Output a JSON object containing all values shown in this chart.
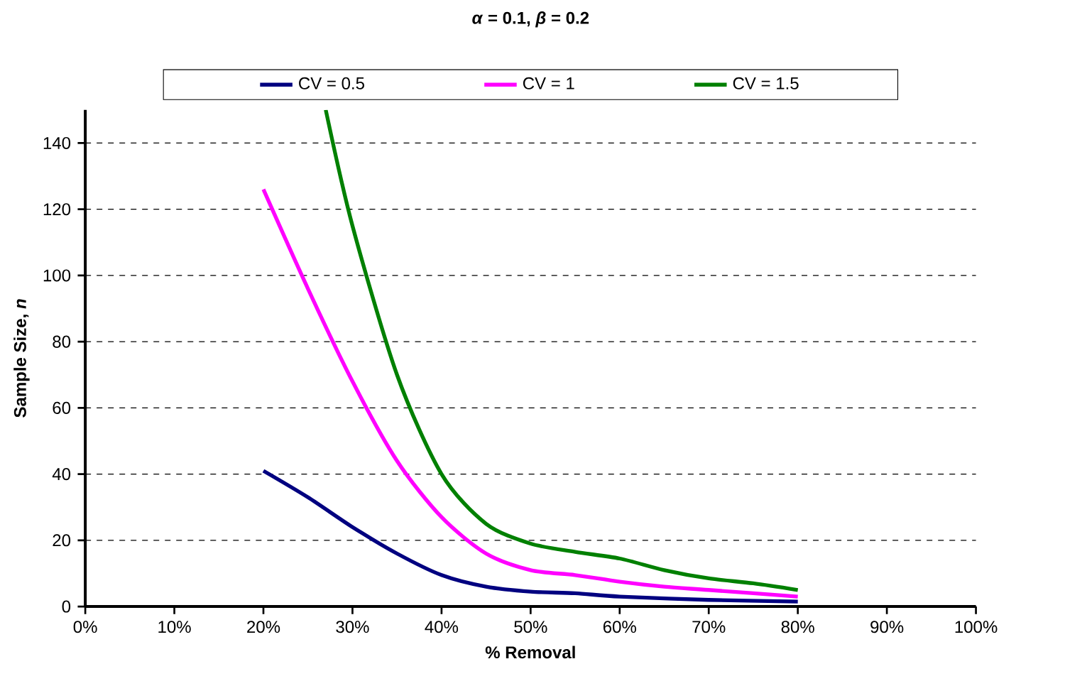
{
  "chart_data": {
    "type": "line",
    "title": "*α* = 0.1, *β* = 0.2",
    "xlabel": "% Removal",
    "ylabel": "Sample Size, *n*",
    "xlim": [
      0,
      100
    ],
    "xticks": [
      {
        "value": 0,
        "label": "0%"
      },
      {
        "value": 10,
        "label": "10%"
      },
      {
        "value": 20,
        "label": "20%"
      },
      {
        "value": 30,
        "label": "30%"
      },
      {
        "value": 40,
        "label": "40%"
      },
      {
        "value": 50,
        "label": "50%"
      },
      {
        "value": 60,
        "label": "60%"
      },
      {
        "value": 70,
        "label": "70%"
      },
      {
        "value": 80,
        "label": "80%"
      },
      {
        "value": 90,
        "label": "90%"
      },
      {
        "value": 100,
        "label": "100%"
      }
    ],
    "ylim": [
      0,
      150
    ],
    "yticks": [
      0,
      20,
      40,
      60,
      80,
      100,
      120,
      140
    ],
    "grid": "y",
    "legend": "top",
    "marker": "none",
    "line_style": "solid",
    "series": [
      {
        "name": "CV = 0.5",
        "color": "#000080",
        "x": [
          20,
          25,
          30,
          35,
          40,
          45,
          50,
          55,
          60,
          70,
          80
        ],
        "values": [
          41,
          33,
          24,
          16,
          9.5,
          6,
          4.5,
          4,
          3,
          2,
          1.5
        ]
      },
      {
        "name": "CV = 1",
        "color": "#ff00ff",
        "x": [
          20,
          25,
          30,
          35,
          40,
          45,
          50,
          55,
          60,
          65,
          70,
          80
        ],
        "values": [
          126,
          96,
          68,
          44,
          27,
          16,
          11,
          9.5,
          7.5,
          6,
          5,
          3
        ]
      },
      {
        "name": "CV = 1.5",
        "color": "#008000",
        "x": [
          27,
          30,
          35,
          40,
          45,
          50,
          55,
          60,
          65,
          70,
          75,
          80
        ],
        "values": [
          150,
          115,
          70,
          40,
          25,
          19,
          16.5,
          14.5,
          11,
          8.5,
          7,
          5
        ]
      }
    ]
  }
}
